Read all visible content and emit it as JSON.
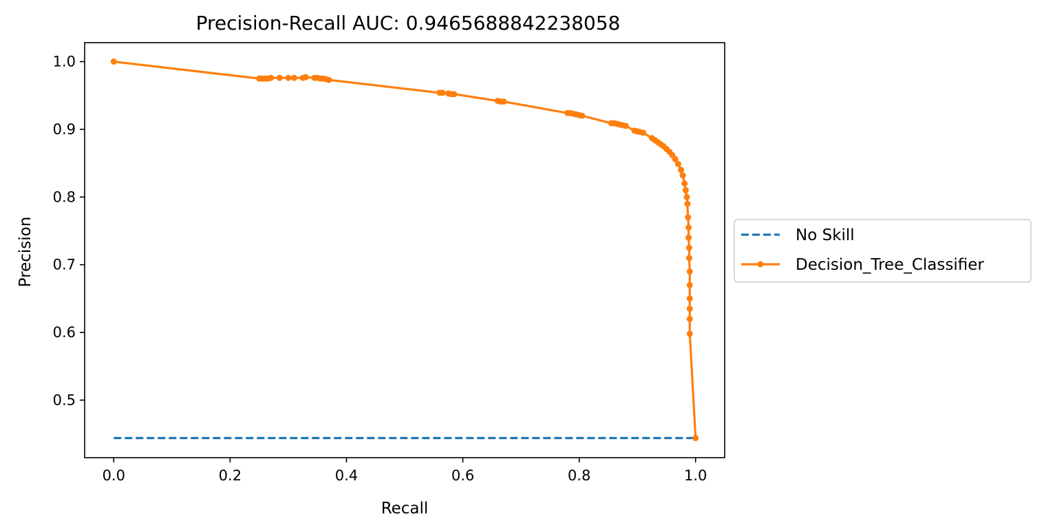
{
  "chart_data": {
    "type": "line",
    "title": "Precision-Recall AUC: 0.9465688842238058",
    "xlabel": "Recall",
    "ylabel": "Precision",
    "xlim": [
      -0.05,
      1.05
    ],
    "ylim": [
      0.415,
      1.028
    ],
    "x_ticks": [
      {
        "value": 0.0,
        "label": "0.0"
      },
      {
        "value": 0.2,
        "label": "0.2"
      },
      {
        "value": 0.4,
        "label": "0.4"
      },
      {
        "value": 0.6,
        "label": "0.6"
      },
      {
        "value": 0.8,
        "label": "0.8"
      },
      {
        "value": 1.0,
        "label": "1.0"
      }
    ],
    "y_ticks": [
      {
        "value": 0.5,
        "label": "0.5"
      },
      {
        "value": 0.6,
        "label": "0.6"
      },
      {
        "value": 0.7,
        "label": "0.7"
      },
      {
        "value": 0.8,
        "label": "0.8"
      },
      {
        "value": 0.9,
        "label": "0.9"
      },
      {
        "value": 1.0,
        "label": "1.0"
      }
    ],
    "grid": false,
    "legend_position": "center-left outside, right of plot",
    "series": [
      {
        "name": "No Skill",
        "style": "dashed",
        "marker": "none",
        "color": "#1f77b4",
        "points": [
          [
            0.0,
            0.444
          ],
          [
            1.0,
            0.444
          ]
        ]
      },
      {
        "name": "Decision_Tree_Classifier",
        "style": "solid",
        "marker": "circle",
        "color": "#ff7f0e",
        "points": [
          [
            0.0,
            1.0
          ],
          [
            0.25,
            0.975
          ],
          [
            0.255,
            0.975
          ],
          [
            0.26,
            0.975
          ],
          [
            0.265,
            0.975
          ],
          [
            0.27,
            0.976
          ],
          [
            0.285,
            0.976
          ],
          [
            0.3,
            0.976
          ],
          [
            0.31,
            0.976
          ],
          [
            0.325,
            0.976
          ],
          [
            0.33,
            0.977
          ],
          [
            0.345,
            0.976
          ],
          [
            0.35,
            0.976
          ],
          [
            0.355,
            0.975
          ],
          [
            0.36,
            0.975
          ],
          [
            0.365,
            0.974
          ],
          [
            0.37,
            0.973
          ],
          [
            0.56,
            0.954
          ],
          [
            0.565,
            0.954
          ],
          [
            0.575,
            0.953
          ],
          [
            0.58,
            0.952
          ],
          [
            0.585,
            0.952
          ],
          [
            0.66,
            0.942
          ],
          [
            0.665,
            0.941
          ],
          [
            0.67,
            0.941
          ],
          [
            0.78,
            0.924
          ],
          [
            0.785,
            0.924
          ],
          [
            0.79,
            0.923
          ],
          [
            0.795,
            0.922
          ],
          [
            0.8,
            0.921
          ],
          [
            0.805,
            0.92
          ],
          [
            0.855,
            0.909
          ],
          [
            0.86,
            0.909
          ],
          [
            0.865,
            0.908
          ],
          [
            0.87,
            0.907
          ],
          [
            0.875,
            0.906
          ],
          [
            0.88,
            0.905
          ],
          [
            0.895,
            0.898
          ],
          [
            0.9,
            0.897
          ],
          [
            0.905,
            0.896
          ],
          [
            0.91,
            0.895
          ],
          [
            0.925,
            0.887
          ],
          [
            0.93,
            0.884
          ],
          [
            0.935,
            0.881
          ],
          [
            0.94,
            0.878
          ],
          [
            0.945,
            0.875
          ],
          [
            0.95,
            0.871
          ],
          [
            0.955,
            0.867
          ],
          [
            0.96,
            0.862
          ],
          [
            0.965,
            0.856
          ],
          [
            0.97,
            0.849
          ],
          [
            0.975,
            0.84
          ],
          [
            0.978,
            0.832
          ],
          [
            0.981,
            0.82
          ],
          [
            0.983,
            0.81
          ],
          [
            0.985,
            0.8
          ],
          [
            0.986,
            0.79
          ],
          [
            0.987,
            0.77
          ],
          [
            0.988,
            0.755
          ],
          [
            0.988,
            0.74
          ],
          [
            0.989,
            0.725
          ],
          [
            0.989,
            0.71
          ],
          [
            0.99,
            0.69
          ],
          [
            0.99,
            0.67
          ],
          [
            0.99,
            0.65
          ],
          [
            0.99,
            0.635
          ],
          [
            0.99,
            0.62
          ],
          [
            0.99,
            0.598
          ],
          [
            1.0,
            0.444
          ]
        ]
      }
    ]
  }
}
